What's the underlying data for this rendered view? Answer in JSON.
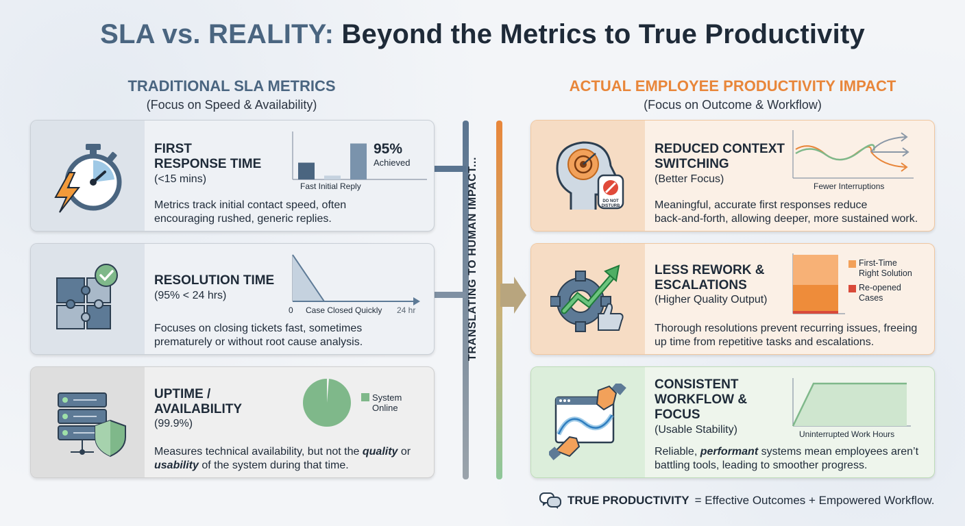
{
  "title": {
    "part1": "SLA vs. REALITY:",
    "part2": "Beyond the Metrics to True Productivity"
  },
  "left_header": {
    "title": "TRADITIONAL SLA METRICS",
    "subtitle": "(Focus on Speed & Availability)"
  },
  "right_header": {
    "title": "ACTUAL EMPLOYEE PRODUCTIVITY IMPACT",
    "subtitle": "(Focus on Outcome & Workflow)"
  },
  "middle_text": "TRANSLATING TO HUMAN IMPACT...",
  "left_cards": [
    {
      "title_line1": "FIRST",
      "title_line2": "RESPONSE TIME",
      "subtitle": "(<15 mins)",
      "desc_line1": "Metrics track initial contact speed, often",
      "desc_line2": "encouraging rushed, generic replies.",
      "chart_label": "Fast Initial Reply",
      "big_value": "95%",
      "big_label": "Achieved",
      "icon": "stopwatch-lightning-icon"
    },
    {
      "title_line1": "RESOLUTION TIME",
      "subtitle": "(95% < 24 hrs)",
      "desc_line1": "Focuses on closing tickets fast, sometimes",
      "desc_line2": "prematurely or without root cause analysis.",
      "chart_label": "Case Closed Quickly",
      "axis_start": "0",
      "axis_end": "24 hr",
      "icon": "puzzle-check-icon"
    },
    {
      "title_line1": "UPTIME /",
      "title_line2": "AVAILABILITY",
      "subtitle": "(99.9%)",
      "desc_part1": "Measures technical availability, but not the ",
      "desc_em1": "quality",
      "desc_part2": " or",
      "desc_em2": "usability",
      "desc_part3": " of the system during that time.",
      "legend_line1": "System",
      "legend_line2": "Online",
      "icon": "server-shield-icon"
    }
  ],
  "right_cards": [
    {
      "title_line1": "REDUCED CONTEXT",
      "title_line2": "SWITCHING",
      "subtitle": "(Better Focus)",
      "desc_line1": "Meaningful, accurate first responses reduce",
      "desc_line2": "back-and-forth, allowing deeper, more sustained work.",
      "chart_label": "Fewer Interruptions",
      "sign_line1": "DO NOT",
      "sign_line2": "DISTURB",
      "icon": "head-focus-icon"
    },
    {
      "title_line1": "LESS REWORK &",
      "title_line2": "ESCALATIONS",
      "subtitle": "(Higher Quality Output)",
      "desc_line1": "Thorough resolutions prevent recurring issues, freeing",
      "desc_line2": "up time from repetitive tasks and escalations.",
      "legend1_line1": "First-Time",
      "legend1_line2": "Right Solution",
      "legend2_line1": "Re-opened",
      "legend2_line2": "Cases",
      "icon": "gear-growth-icon"
    },
    {
      "title_line1": "CONSISTENT",
      "title_line2": "WORKFLOW &",
      "title_line3": "FOCUS",
      "subtitle": "(Usable Stability)",
      "desc_part1": "Reliable, ",
      "desc_em": "performant",
      "desc_part2": " systems mean employees aren’t",
      "desc_line2": "battling tools, leading to smoother progress.",
      "chart_label": "Uninterrupted Work Hours",
      "icon": "hands-workflow-icon"
    }
  ],
  "footer": {
    "bold": "TRUE PRODUCTIVITY",
    "rest": "= Effective Outcomes + Empowered Workflow.",
    "icon": "chat-bubbles-icon"
  },
  "chart_data": [
    {
      "type": "bar",
      "title": "Fast Initial Reply",
      "note": "95% Achieved",
      "values": [
        0.35,
        0.08,
        0.75
      ]
    },
    {
      "type": "area",
      "title": "Case Closed Quickly",
      "xlim": [
        "0",
        "24 hr"
      ]
    },
    {
      "type": "pie",
      "values": [
        99.9,
        0.1
      ],
      "legend": [
        "System Online"
      ]
    },
    {
      "type": "line",
      "title": "Fewer Interruptions"
    },
    {
      "type": "bar",
      "series": [
        {
          "name": "First-Time Right Solution"
        },
        {
          "name": "Re-opened Cases"
        }
      ]
    },
    {
      "type": "area",
      "title": "Uninterrupted Work Hours"
    }
  ],
  "colors": {
    "slate": "#4a6580",
    "orange": "#e8863a",
    "green": "#7fb88a",
    "dark": "#1e2a38"
  }
}
